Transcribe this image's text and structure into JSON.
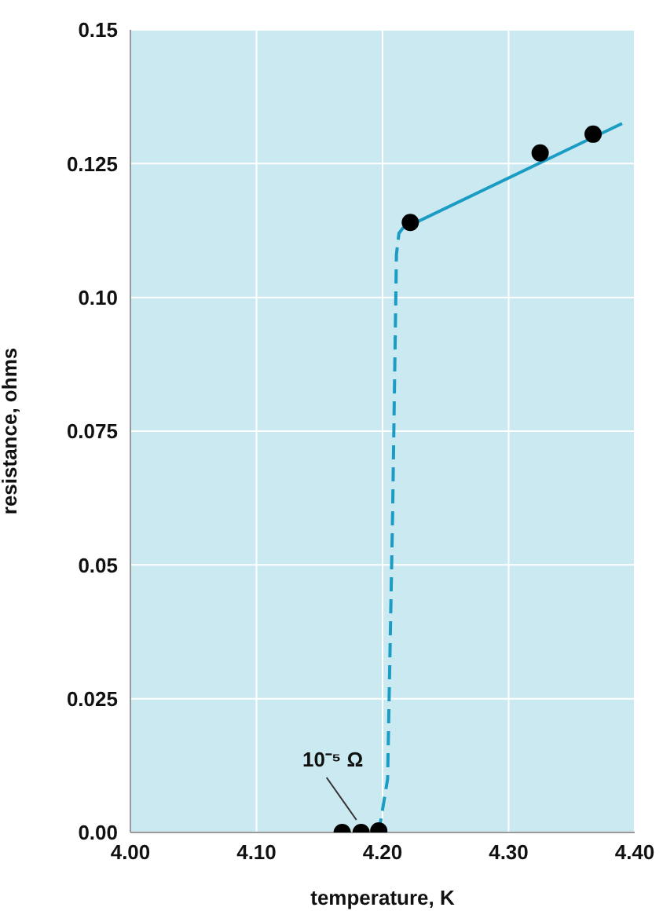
{
  "chart_data": {
    "type": "line",
    "xlabel": "temperature, K",
    "ylabel": "resistance, ohms",
    "xlim": [
      4.0,
      4.4
    ],
    "ylim": [
      0,
      0.15
    ],
    "xticks": [
      {
        "value": 4.0,
        "label": "4.00"
      },
      {
        "value": 4.1,
        "label": "4.10"
      },
      {
        "value": 4.2,
        "label": "4.20"
      },
      {
        "value": 4.3,
        "label": "4.30"
      },
      {
        "value": 4.4,
        "label": "4.40"
      }
    ],
    "yticks": [
      {
        "value": 0,
        "label": "0.00"
      },
      0.025,
      {
        "value": 0.05,
        "label": "0.05"
      },
      0.075,
      {
        "value": 0.1,
        "label": "0.10"
      },
      0.125,
      0.15
    ],
    "grid": true,
    "series": [
      {
        "color": "#1a9cc4",
        "line_style": "solid",
        "marker": "none",
        "x": [
          4.222,
          4.39
        ],
        "values": [
          0.1135,
          0.1325
        ]
      },
      {
        "color": "#1a9cc4",
        "line_style": "dashed",
        "marker": "none",
        "x": [
          4.197,
          4.204,
          4.208,
          4.211,
          4.213,
          4.218
        ],
        "values": [
          0,
          0.01,
          0.06,
          0.108,
          0.112,
          0.1135
        ]
      },
      {
        "type": "scatter",
        "color": "#000000",
        "marker": "circle",
        "x": [
          4.168,
          4.183,
          4.197,
          4.222,
          4.325,
          4.367
        ],
        "values": [
          0,
          0,
          0.0003,
          0.114,
          0.127,
          0.1305
        ]
      }
    ],
    "annotations": [
      {
        "text": "10⁻⁵ Ω",
        "x": 4.183,
        "y": 0
      }
    ]
  }
}
